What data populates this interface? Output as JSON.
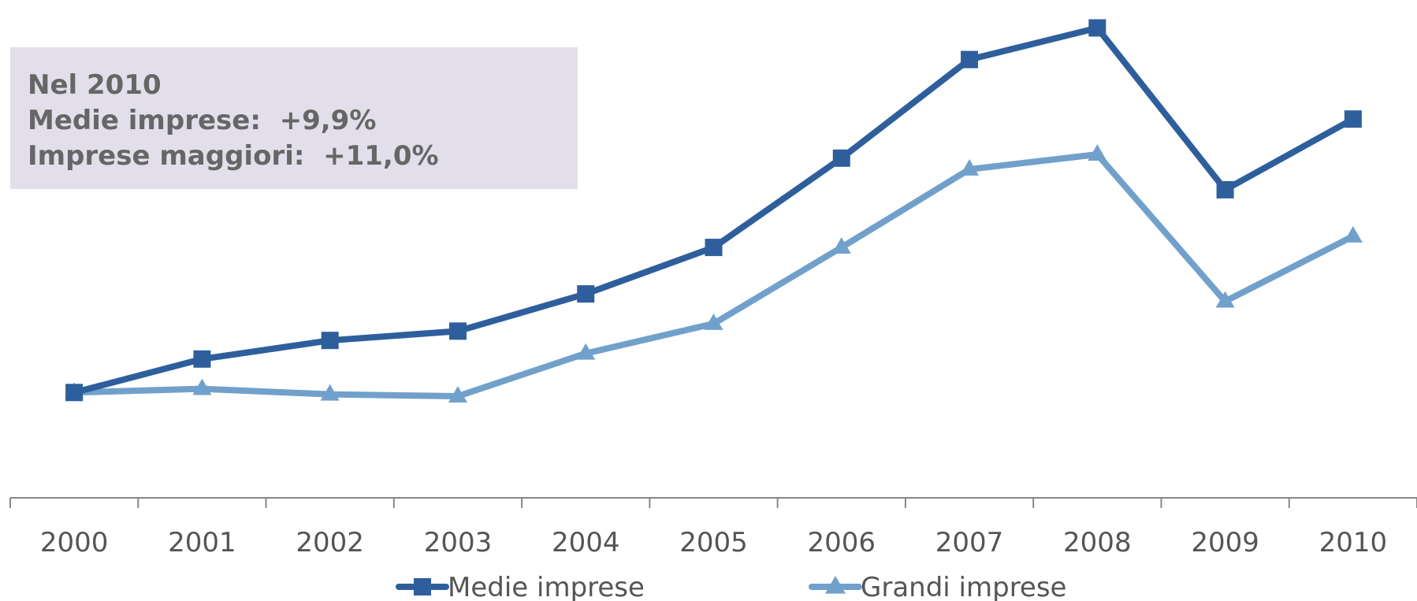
{
  "annotation": {
    "line1": "Nel 2010",
    "line2": "Medie imprese:  +9,9%",
    "line3": "Imprese maggiori:  +11,0%"
  },
  "chart_data": {
    "type": "line",
    "categories": [
      "2000",
      "2001",
      "2002",
      "2003",
      "2004",
      "2005",
      "2006",
      "2007",
      "2008",
      "2009",
      "2010"
    ],
    "series": [
      {
        "name": "Medie imprese",
        "marker": "square",
        "color": "#2e5f9c",
        "values": [
          100,
          109,
          114,
          116.5,
          126.5,
          139,
          163,
          189.5,
          198,
          154.5,
          173.5
        ]
      },
      {
        "name": "Grandi imprese",
        "marker": "triangle",
        "color": "#71a1cb",
        "values": [
          100,
          101,
          99.5,
          99,
          110.5,
          118.5,
          139,
          160,
          164,
          124.5,
          142
        ]
      }
    ],
    "ylim": [
      70,
      200
    ],
    "yaxis_visible": false,
    "grid": false,
    "legend_position": "bottom"
  }
}
